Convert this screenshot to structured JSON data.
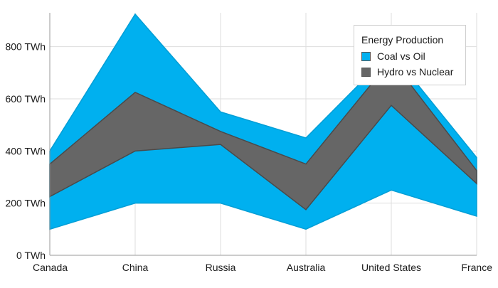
{
  "chart_data": {
    "type": "area",
    "subtype": "range-area",
    "categories": [
      "Canada",
      "China",
      "Russia",
      "Australia",
      "United States",
      "France"
    ],
    "y_ticks": [
      "0 TWh",
      "200 TWh",
      "400 TWh",
      "600 TWh",
      "800 TWh"
    ],
    "ylim": [
      0,
      930
    ],
    "grid": true,
    "legend": {
      "title": "Energy Production",
      "position": "top-right"
    },
    "series": [
      {
        "name": "Coal vs Oil",
        "color": "#00b0ef",
        "low": [
          100,
          200,
          200,
          100,
          250,
          150
        ],
        "high": [
          400,
          925,
          550,
          450,
          780,
          375
        ]
      },
      {
        "name": "Hydro vs Nuclear",
        "color": "#666666",
        "low": [
          225,
          400,
          425,
          175,
          575,
          275
        ],
        "high": [
          350,
          625,
          475,
          350,
          750,
          325
        ]
      }
    ]
  }
}
